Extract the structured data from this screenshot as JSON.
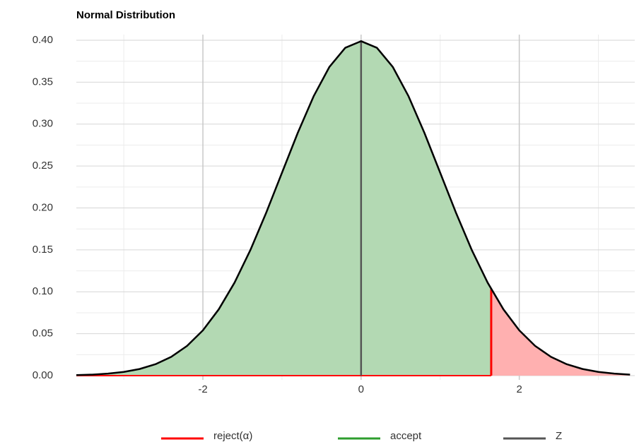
{
  "chart_data": {
    "type": "density",
    "title": "Normal Distribution",
    "xlim": [
      -3.6,
      3.46
    ],
    "ylim": [
      0,
      0.4
    ],
    "xticks": [
      -2,
      0,
      2
    ],
    "xminor": [
      -3,
      -1,
      1,
      3
    ],
    "yticks": [
      {
        "value": 0,
        "label": "0.00"
      },
      {
        "value": 0.05,
        "label": "0.05"
      },
      {
        "value": 0.1,
        "label": "0.10"
      },
      {
        "value": 0.15,
        "label": "0.15"
      },
      {
        "value": 0.2,
        "label": "0.20"
      },
      {
        "value": 0.25,
        "label": "0.25"
      },
      {
        "value": 0.3,
        "label": "0.30"
      },
      {
        "value": 0.35,
        "label": "0.35"
      },
      {
        "value": 0.4,
        "label": "0.40"
      }
    ],
    "yminor": [
      0.025,
      0.075,
      0.125,
      0.175,
      0.225,
      0.275,
      0.325,
      0.375
    ],
    "x": [
      -3.6,
      -3.4,
      -3.2,
      -3.0,
      -2.8,
      -2.6,
      -2.4,
      -2.2,
      -2.0,
      -1.8,
      -1.6,
      -1.4,
      -1.2,
      -1.0,
      -0.8,
      -0.6,
      -0.4,
      -0.2,
      0,
      0.2,
      0.4,
      0.6,
      0.8,
      1.0,
      1.2,
      1.4,
      1.6,
      1.8,
      2.0,
      2.2,
      2.4,
      2.6,
      2.8,
      3.0,
      3.2,
      3.4
    ],
    "values": [
      0.0006,
      0.0012,
      0.0024,
      0.0044,
      0.0079,
      0.0136,
      0.0224,
      0.0355,
      0.054,
      0.079,
      0.1109,
      0.1497,
      0.1942,
      0.242,
      0.2897,
      0.3332,
      0.3683,
      0.391,
      0.3989,
      0.391,
      0.3683,
      0.3332,
      0.2897,
      0.242,
      0.1942,
      0.1497,
      0.1109,
      0.079,
      0.054,
      0.0355,
      0.0224,
      0.0136,
      0.0079,
      0.0044,
      0.0024,
      0.0012
    ],
    "critical_x": 1.645,
    "critical_y": 0.1031,
    "z_x": 0,
    "z_y": 0.3989,
    "curve_color": "#000000",
    "accept_fill": "#b3d9b3",
    "reject_fill": "#ffb0b0",
    "legend": [
      {
        "name": "reject(α)",
        "color": "#ff0000"
      },
      {
        "name": "accept",
        "color": "#2e9e2e"
      },
      {
        "name": "Z",
        "color": "#555555"
      }
    ]
  }
}
